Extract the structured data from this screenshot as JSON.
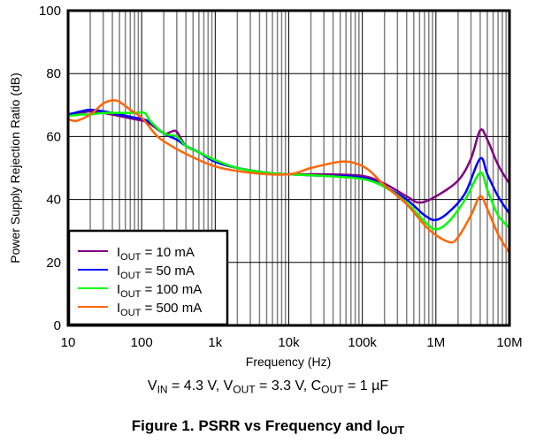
{
  "chart_data": {
    "type": "line",
    "title": "Figure 1. PSRR vs Frequency and I_OUT",
    "caption": {
      "prefix": "Figure 1. PSRR vs Frequency and I",
      "sub": "OUT"
    },
    "conditions": [
      {
        "main": "V",
        "sub": "IN",
        "rest": " = 4.3 V, "
      },
      {
        "main": "V",
        "sub": "OUT",
        "rest": " = 3.3 V, "
      },
      {
        "main": "C",
        "sub": "OUT",
        "rest": " = 1 µF"
      }
    ],
    "xlabel": "Frequency (Hz)",
    "ylabel": "Power Supply Rejection Ratio (dB)",
    "xscale": "log",
    "xlim": [
      10,
      10000000
    ],
    "ylim": [
      0,
      100
    ],
    "xticks": [
      {
        "value": 10,
        "label": "10"
      },
      {
        "value": 100,
        "label": "100"
      },
      {
        "value": 1000,
        "label": "1k"
      },
      {
        "value": 10000,
        "label": "10k"
      },
      {
        "value": 100000,
        "label": "100k"
      },
      {
        "value": 1000000,
        "label": "1M"
      },
      {
        "value": 10000000,
        "label": "10M"
      }
    ],
    "yticks": [
      0,
      20,
      40,
      60,
      80,
      100
    ],
    "grid": true,
    "legend_position": "bottom-left",
    "series": [
      {
        "name": "I_OUT = 10 mA",
        "label_main": "I",
        "label_sub": "OUT",
        "label_rest": " = 10 mA",
        "color": "#800080",
        "x": [
          10,
          15,
          20,
          30,
          50,
          80,
          120,
          200,
          250,
          300,
          400,
          600,
          1000,
          2000,
          5000,
          10000,
          30000,
          100000,
          200000,
          400000,
          600000,
          1000000,
          2000000,
          3000000,
          4000000,
          5000000,
          7000000,
          10000000
        ],
        "y": [
          67,
          67.5,
          68,
          67.5,
          66.5,
          65.5,
          64.5,
          61,
          61.5,
          61.5,
          57,
          55,
          52,
          50,
          48.5,
          48,
          48,
          47.5,
          45,
          41,
          39,
          41,
          46,
          53,
          62,
          59,
          51,
          45
        ]
      },
      {
        "name": "I_OUT = 50 mA",
        "label_main": "I",
        "label_sub": "OUT",
        "label_rest": " = 50 mA",
        "color": "#0000ff",
        "x": [
          10,
          15,
          20,
          30,
          50,
          80,
          120,
          200,
          300,
          400,
          600,
          1000,
          2000,
          5000,
          10000,
          30000,
          100000,
          200000,
          400000,
          700000,
          1000000,
          1500000,
          2500000,
          4000000,
          5000000,
          7000000,
          10000000
        ],
        "y": [
          67,
          68,
          68.5,
          68,
          67,
          66,
          65,
          61,
          59,
          57,
          55,
          52,
          50,
          48.5,
          48,
          47.5,
          47,
          44,
          40,
          35,
          33.5,
          36,
          42,
          53,
          48,
          41,
          35.5
        ]
      },
      {
        "name": "I_OUT = 100 mA",
        "label_main": "I",
        "label_sub": "OUT",
        "label_rest": " = 100 mA",
        "color": "#00ff00",
        "x": [
          10,
          15,
          20,
          30,
          50,
          80,
          110,
          130,
          200,
          300,
          400,
          600,
          1000,
          2000,
          5000,
          10000,
          30000,
          100000,
          200000,
          400000,
          700000,
          1000000,
          1500000,
          2500000,
          4000000,
          5000000,
          7000000,
          10000000
        ],
        "y": [
          66.5,
          67,
          67,
          67.5,
          67.5,
          67.5,
          67.5,
          65,
          61,
          60,
          57,
          55,
          52.5,
          50,
          48.5,
          48,
          47.5,
          46.5,
          44,
          39,
          33,
          30.5,
          33,
          40,
          48.5,
          43,
          35,
          31
        ]
      },
      {
        "name": "I_OUT = 500 mA",
        "label_main": "I",
        "label_sub": "OUT",
        "label_rest": " = 500 mA",
        "color": "#ff6600",
        "x": [
          10,
          13,
          20,
          30,
          40,
          50,
          70,
          100,
          150,
          200,
          400,
          1000,
          3000,
          10000,
          20000,
          50000,
          80000,
          120000,
          200000,
          400000,
          800000,
          1500000,
          2000000,
          3000000,
          4000000,
          5000000,
          7000000,
          10000000
        ],
        "y": [
          65.5,
          65,
          67,
          70.5,
          71.5,
          71,
          68.5,
          66,
          61,
          58.5,
          54.5,
          50.5,
          48.5,
          48,
          50,
          52,
          51.5,
          49.5,
          44.5,
          38.5,
          30.5,
          26.5,
          28,
          35,
          41,
          37,
          29,
          23
        ]
      }
    ]
  }
}
